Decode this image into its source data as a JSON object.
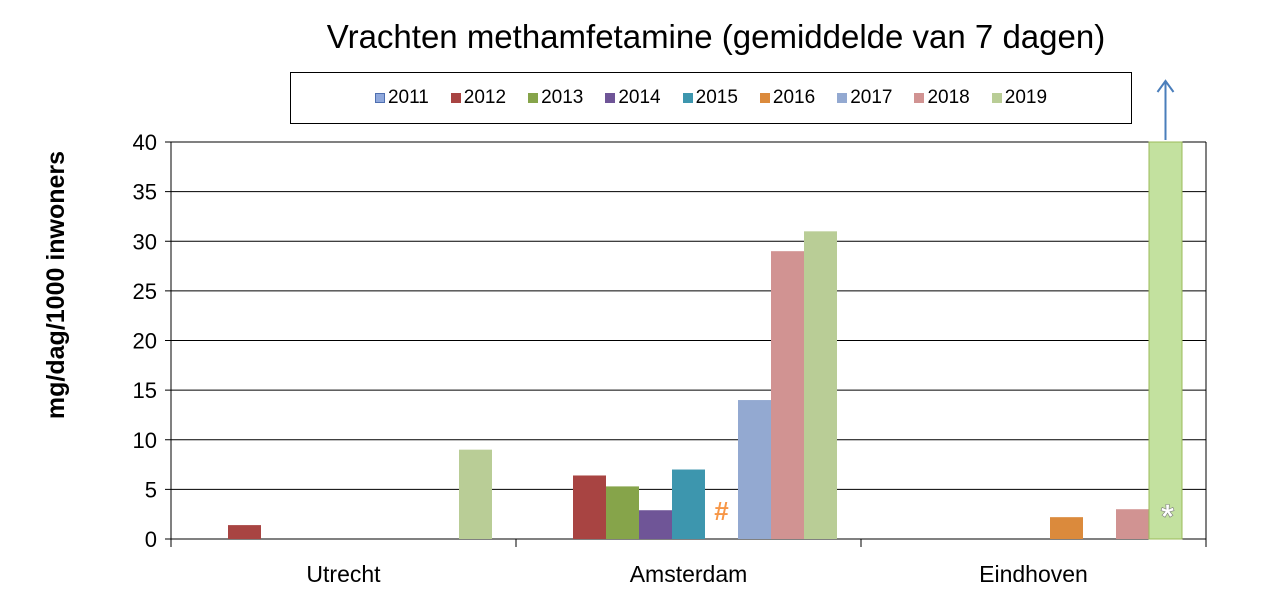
{
  "chart_data": {
    "type": "bar",
    "title": "Vrachten methamfetamine (gemiddelde van 7 dagen)",
    "ylabel": "mg/dag/1000 inwoners",
    "xlabel": "",
    "ylim": [
      0,
      40
    ],
    "yticks": [
      0,
      5,
      10,
      15,
      20,
      25,
      30,
      35,
      40
    ],
    "grid": true,
    "legend_position": "top",
    "categories": [
      "Utrecht",
      "Amsterdam",
      "Eindhoven"
    ],
    "series": [
      {
        "name": "2011",
        "color": "#8fa8dc",
        "values": [
          null,
          null,
          null
        ]
      },
      {
        "name": "2012",
        "color": "#a84442",
        "values": [
          1.4,
          6.4,
          null
        ]
      },
      {
        "name": "2013",
        "color": "#86a44a",
        "values": [
          null,
          5.3,
          null
        ]
      },
      {
        "name": "2014",
        "color": "#6f5597",
        "values": [
          null,
          2.9,
          null
        ]
      },
      {
        "name": "2015",
        "color": "#3d96ae",
        "values": [
          null,
          7.0,
          null
        ]
      },
      {
        "name": "2016",
        "color": "#db8a3c",
        "values": [
          null,
          null,
          2.2
        ]
      },
      {
        "name": "2017",
        "color": "#93a9d1",
        "values": [
          null,
          14.0,
          null
        ]
      },
      {
        "name": "2018",
        "color": "#d19392",
        "values": [
          null,
          29.0,
          3.0
        ]
      },
      {
        "name": "2019",
        "color": "#b9cd96",
        "values": [
          9.0,
          31.0,
          40.0
        ]
      }
    ],
    "annotations": [
      {
        "text": "#",
        "category": "Amsterdam",
        "series": "2016",
        "color": "#f79646"
      },
      {
        "text": "*",
        "category": "Eindhoven",
        "series": "2019",
        "color": "#ffffff"
      },
      {
        "text": "↑",
        "category": "Eindhoven",
        "series": "2019",
        "meaning": "value exceeds axis maximum",
        "color": "#4a7ebb"
      }
    ],
    "highlight": {
      "category": "Eindhoven",
      "series": "2019",
      "color": "#c3e19f"
    }
  }
}
